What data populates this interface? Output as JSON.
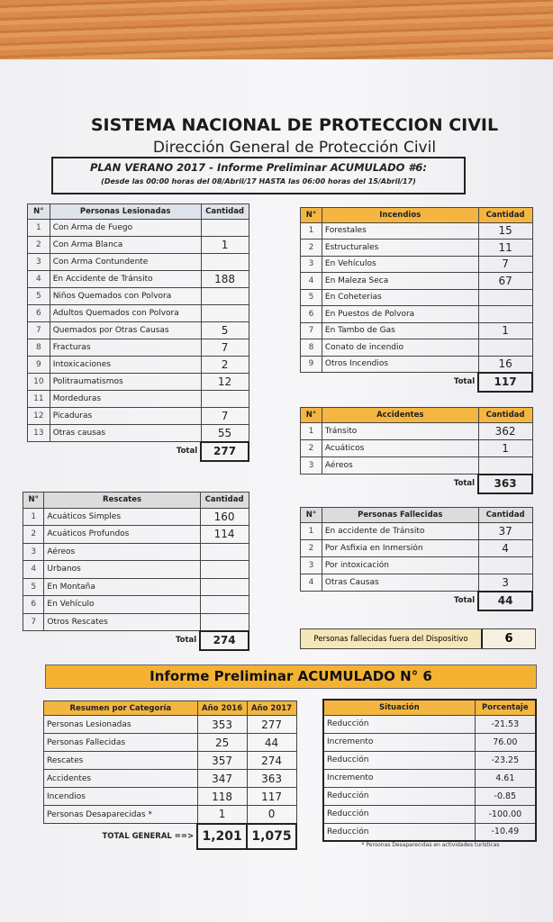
{
  "header": {
    "title": "SISTEMA NACIONAL DE PROTECCION CIVIL",
    "subtitle": "Dirección General de Protección Civil",
    "plan": "PLAN VERANO 2017 - Informe Preliminar ACUMULADO #6:",
    "period": "(Desde las 00:00 horas del 08/Abril/17 HASTA las 06:00 horas del 15/Abril/17)"
  },
  "lesionadas": {
    "headers": [
      "N°",
      "Personas Lesionadas",
      "Cantidad"
    ],
    "rows": [
      [
        "1",
        "Con Arma de Fuego",
        ""
      ],
      [
        "2",
        "Con Arma Blanca",
        "1"
      ],
      [
        "3",
        "Con Arma Contundente",
        ""
      ],
      [
        "4",
        "En Accidente de Tránsito",
        "188"
      ],
      [
        "5",
        "Niños Quemados con Polvora",
        ""
      ],
      [
        "6",
        "Adultos Quemados con Polvora",
        ""
      ],
      [
        "7",
        "Quemados por Otras Causas",
        "5"
      ],
      [
        "8",
        "Fracturas",
        "7"
      ],
      [
        "9",
        "Intoxicaciones",
        "2"
      ],
      [
        "10",
        "Politraumatismos",
        "12"
      ],
      [
        "11",
        "Mordeduras",
        ""
      ],
      [
        "12",
        "Picaduras",
        "7"
      ],
      [
        "13",
        "Otras causas",
        "55"
      ]
    ],
    "total_label": "Total",
    "total": "277"
  },
  "incendios": {
    "headers": [
      "N°",
      "Incendios",
      "Cantidad"
    ],
    "rows": [
      [
        "1",
        "Forestales",
        "15"
      ],
      [
        "2",
        "Estructurales",
        "11"
      ],
      [
        "3",
        "En Vehículos",
        "7"
      ],
      [
        "4",
        "En Maleza Seca",
        "67"
      ],
      [
        "5",
        "En Coheterias",
        ""
      ],
      [
        "6",
        "En Puestos de Polvora",
        ""
      ],
      [
        "7",
        "En Tambo de Gas",
        "1"
      ],
      [
        "8",
        "Conato de incendio",
        ""
      ],
      [
        "9",
        "Otros Incendios",
        "16"
      ]
    ],
    "total_label": "Total",
    "total": "117"
  },
  "accidentes": {
    "headers": [
      "N°",
      "Accidentes",
      "Cantidad"
    ],
    "rows": [
      [
        "1",
        "Tránsito",
        "362"
      ],
      [
        "2",
        "Acuáticos",
        "1"
      ],
      [
        "3",
        "Aéreos",
        ""
      ]
    ],
    "total_label": "Total",
    "total": "363"
  },
  "rescates": {
    "headers": [
      "N°",
      "Rescates",
      "Cantidad"
    ],
    "rows": [
      [
        "1",
        "Acuáticos Simples",
        "160"
      ],
      [
        "2",
        "Acuáticos Profundos",
        "114"
      ],
      [
        "3",
        "Aéreos",
        ""
      ],
      [
        "4",
        "Urbanos",
        ""
      ],
      [
        "5",
        "En Montaña",
        ""
      ],
      [
        "6",
        "En Vehículo",
        ""
      ],
      [
        "7",
        "Otros Rescates",
        ""
      ]
    ],
    "total_label": "Total",
    "total": "274"
  },
  "fallecidas": {
    "headers": [
      "N°",
      "Personas Fallecidas",
      "Cantidad"
    ],
    "rows": [
      [
        "1",
        "En accidente de Tránsito",
        "37"
      ],
      [
        "2",
        "Por Asfixia en Inmersión",
        "4"
      ],
      [
        "3",
        "Por intoxicación",
        ""
      ],
      [
        "4",
        "Otras Causas",
        "3"
      ]
    ],
    "total_label": "Total",
    "total": "44"
  },
  "fuera": {
    "label": "Personas fallecidas fuera del Dispositivo",
    "value": "6"
  },
  "banner": "Informe Preliminar ACUMULADO N° 6",
  "resumen": {
    "headers": [
      "Resumen por Categoría",
      "Año 2016",
      "Año 2017"
    ],
    "rows": [
      [
        "Personas Lesionadas",
        "353",
        "277"
      ],
      [
        "Personas Fallecidas",
        "25",
        "44"
      ],
      [
        "Rescates",
        "357",
        "274"
      ],
      [
        "Accidentes",
        "347",
        "363"
      ],
      [
        "Incendios",
        "118",
        "117"
      ],
      [
        "Personas Desaparecidas *",
        "1",
        "0"
      ]
    ],
    "total_label": "TOTAL GENERAL  ==>",
    "total_2016": "1,201",
    "total_2017": "1,075"
  },
  "situacion": {
    "headers": [
      "Situación",
      "Porcentaje"
    ],
    "rows": [
      [
        "Reducción",
        "-21.53"
      ],
      [
        "Incremento",
        "76.00"
      ],
      [
        "Reducción",
        "-23.25"
      ],
      [
        "Incremento",
        "4.61"
      ],
      [
        "Reducción",
        "-0.85"
      ],
      [
        "Reducción",
        "-100.00"
      ],
      [
        "Reducción",
        "-10.49"
      ]
    ]
  },
  "note": "* Personas Desaparecidas en actividades turísticas",
  "colors": {
    "orange": "#f4b641",
    "blue_gray": "#dfe3ea",
    "gray": "#dcdcdf"
  }
}
